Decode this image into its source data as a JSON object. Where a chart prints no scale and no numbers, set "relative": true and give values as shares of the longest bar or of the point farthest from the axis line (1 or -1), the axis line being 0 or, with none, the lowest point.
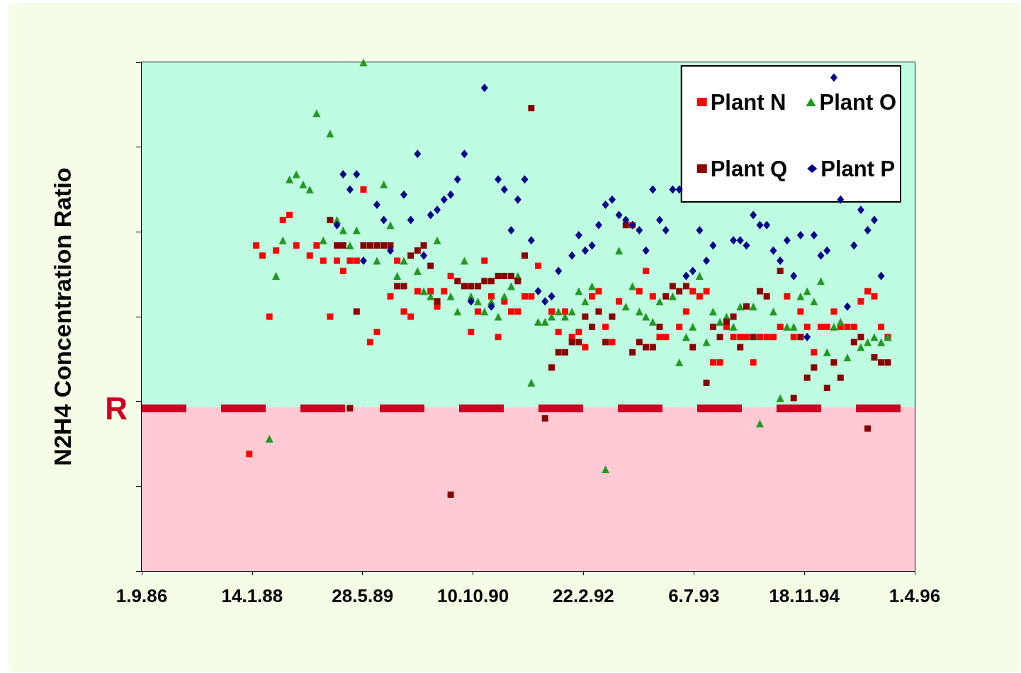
{
  "chart_data": {
    "type": "scatter",
    "ylabel": "N2H4 Concentration Ratio",
    "relative": true,
    "xlim": [
      "1986-09-01",
      "1996-04-01"
    ],
    "xticks": [
      {
        "value": "1986-09-01",
        "label": "1.9.86"
      },
      {
        "value": "1988-01-14",
        "label": "14.1.88"
      },
      {
        "value": "1989-05-28",
        "label": "28.5.89"
      },
      {
        "value": "1990-10-10",
        "label": "10.10.90"
      },
      {
        "value": "1992-02-22",
        "label": "22.2.92"
      },
      {
        "value": "1993-07-06",
        "label": "6.7.93"
      },
      {
        "value": "1994-11-18",
        "label": "18.11.94"
      },
      {
        "value": "1996-04-01",
        "label": "1.4.96"
      }
    ],
    "grid": true,
    "legend": "top right",
    "tick_labels": "x",
    "ref_lines": [
      {
        "axis": "y",
        "value": 0.322,
        "label": "R",
        "color": "#cc0022",
        "line_style": "dashed"
      }
    ],
    "bands": [
      {
        "axis": "y",
        "from": 0,
        "to": 0.322,
        "color": "#ffcad4"
      },
      {
        "axis": "y",
        "from": 0.322,
        "to": 1,
        "color": "#bffde2"
      }
    ],
    "series": [
      {
        "name": "Plant N",
        "color": "#ff0000",
        "marker": "square",
        "x": [
          "1989-06",
          "1988-07",
          "1988-06",
          "1988-02",
          "1988-03",
          "1988-05",
          "1988-08",
          "1988-11",
          "1988-10",
          "1988-12",
          "1989-02",
          "1989-03",
          "1989-04",
          "1989-05",
          "1989-11",
          "1989-10",
          "1988-04",
          "1989-01",
          "1989-08",
          "1989-07",
          "1988-01",
          "1990-12",
          "1991-08",
          "1990-07",
          "1990-02",
          "1990-04",
          "1990-06",
          "1990-05",
          "1991-01",
          "1991-03",
          "1991-06",
          "1991-07",
          "1992-12",
          "1992-05",
          "1992-04",
          "1992-08",
          "1992-11",
          "1993-01",
          "1992-10",
          "1989-12",
          "1990-01",
          "1990-11",
          "1991-04",
          "1991-05",
          "1991-10",
          "1991-12",
          "1990-10",
          "1991-02",
          "1991-11",
          "1992-02",
          "1992-01",
          "1992-03",
          "1992-06",
          "1992-07",
          "1993-06",
          "1993-07",
          "1993-08",
          "1993-09",
          "1993-05",
          "1993-12",
          "1994-08",
          "1994-12",
          "1995-02",
          "1995-03",
          "1995-05",
          "1995-06",
          "1995-07",
          "1995-11",
          "1993-02",
          "1993-03",
          "1994-01",
          "1994-02",
          "1994-03",
          "1994-05",
          "1994-06",
          "1994-07",
          "1994-10",
          "1995-12",
          "1995-01",
          "1993-10",
          "1993-11",
          "1994-04",
          "1994-09",
          "1994-11",
          "1995-04",
          "1995-09",
          "1995-08",
          "1995-10"
        ],
        "values": [
          0.75,
          0.7,
          0.69,
          0.64,
          0.62,
          0.63,
          0.64,
          0.64,
          0.62,
          0.61,
          0.61,
          0.59,
          0.61,
          0.61,
          0.61,
          0.54,
          0.5,
          0.5,
          0.47,
          0.45,
          0.23,
          0.61,
          0.6,
          0.58,
          0.55,
          0.55,
          0.55,
          0.52,
          0.54,
          0.53,
          0.54,
          0.54,
          0.59,
          0.55,
          0.54,
          0.53,
          0.55,
          0.54,
          0.68,
          0.51,
          0.5,
          0.51,
          0.51,
          0.51,
          0.51,
          0.51,
          0.47,
          0.46,
          0.47,
          0.47,
          0.46,
          0.44,
          0.48,
          0.45,
          0.51,
          0.55,
          0.54,
          0.55,
          0.48,
          0.48,
          0.48,
          0.48,
          0.48,
          0.48,
          0.48,
          0.48,
          0.48,
          0.48,
          0.46,
          0.46,
          0.46,
          0.46,
          0.46,
          0.46,
          0.46,
          0.46,
          0.46,
          0.46,
          0.43,
          0.41,
          0.41,
          0.41,
          0.54,
          0.51,
          0.51,
          0.55,
          0.53,
          0.54
        ]
      },
      {
        "name": "Plant O",
        "color": "#229922",
        "marker": "triangle",
        "x": [
          "1989-06",
          "1988-11",
          "1989-01",
          "1988-08",
          "1988-07",
          "1988-09",
          "1988-10",
          "1989-09",
          "1989-02",
          "1989-03",
          "1989-05",
          "1989-10",
          "1988-06",
          "1988-12",
          "1989-04",
          "1989-08",
          "1989-11",
          "1988-05",
          "1988-04",
          "1990-05",
          "1989-12",
          "1990-01",
          "1990-09",
          "1990-02",
          "1990-03",
          "1990-04",
          "1990-07",
          "1990-08",
          "1990-10",
          "1990-11",
          "1990-12",
          "1991-01",
          "1991-02",
          "1991-03",
          "1991-04",
          "1991-05",
          "1991-07",
          "1991-08",
          "1991-09",
          "1991-10",
          "1991-11",
          "1991-12",
          "1992-01",
          "1992-02",
          "1992-03",
          "1992-04",
          "1992-06",
          "1992-08",
          "1992-09",
          "1992-10",
          "1992-11",
          "1992-12",
          "1993-01",
          "1993-02",
          "1993-04",
          "1993-05",
          "1993-06",
          "1993-07",
          "1993-08",
          "1993-09",
          "1993-10",
          "1993-11",
          "1993-12",
          "1994-01",
          "1994-02",
          "1994-04",
          "1994-05",
          "1994-06",
          "1994-07",
          "1994-08",
          "1994-09",
          "1994-10",
          "1994-11",
          "1994-12",
          "1995-01",
          "1995-02",
          "1995-03",
          "1995-04",
          "1995-05",
          "1995-06",
          "1995-07",
          "1995-08",
          "1995-09",
          "1995-10",
          "1995-11",
          "1995-12"
        ],
        "values": [
          1,
          0.9,
          0.86,
          0.78,
          0.77,
          0.76,
          0.75,
          0.76,
          0.69,
          0.67,
          0.67,
          0.68,
          0.65,
          0.65,
          0.64,
          0.61,
          0.58,
          0.58,
          0.26,
          0.65,
          0.61,
          null,
          0.61,
          0.59,
          0.55,
          0.54,
          0.54,
          0.51,
          0.54,
          0.53,
          0.51,
          0.53,
          0.5,
          0.54,
          0.56,
          0.58,
          0.37,
          0.49,
          0.49,
          0.5,
          0.51,
          0.5,
          0.51,
          0.55,
          0.53,
          0.56,
          0.2,
          0.63,
          0.52,
          0.56,
          0.51,
          0.5,
          0.49,
          0.53,
          0.54,
          0.41,
          0.46,
          0.48,
          0.58,
          0.45,
          0.51,
          0.49,
          0.5,
          0.48,
          0.52,
          0.52,
          0.29,
          null,
          0.51,
          0.34,
          0.48,
          0.48,
          0.54,
          0.55,
          0.53,
          0.57,
          0.43,
          0.48,
          0.49,
          0.42,
          null,
          0.44,
          0.45,
          0.46,
          0.45,
          0.46
        ]
      },
      {
        "name": "Plant Q",
        "color": "#880000",
        "marker": "square",
        "x": [
          "1989-01",
          "1989-02",
          "1989-03",
          "1989-06",
          "1989-07",
          "1989-08",
          "1989-09",
          "1989-10",
          "1989-11",
          "1989-05",
          "1989-04",
          "1991-07",
          "1990-02",
          "1990-03",
          "1990-01",
          "1990-04",
          "1989-12",
          "1990-08",
          "1990-09",
          "1990-10",
          "1990-11",
          "1990-12",
          "1991-01",
          "1991-02",
          "1991-03",
          "1991-04",
          "1991-05",
          "1991-06",
          "1990-05",
          "1992-09",
          "1990-07",
          "1991-09",
          "1992-03",
          "1992-05",
          "1992-07",
          "1992-01",
          "1992-02",
          "1991-11",
          "1991-12",
          "1991-10",
          "1992-04",
          "1992-06",
          "1992-11",
          "1992-12",
          "1993-01",
          "1992-10",
          "1993-02",
          "1993-07",
          "1993-09",
          "1993-10",
          "1993-12",
          "1994-01",
          "1993-11",
          "1994-02",
          "1994-04",
          "1994-11",
          "1994-10",
          "1994-12",
          "1995-01",
          "1995-03",
          "1995-04",
          "1995-05",
          "1995-07",
          "1995-08",
          "1995-10",
          "1995-11",
          "1995-12",
          "1995-09",
          "1994-08",
          "1994-05",
          "1994-06",
          "1994-03",
          "1993-04",
          "1993-03",
          "1993-05",
          "1993-06"
        ],
        "values": [
          0.69,
          0.64,
          0.64,
          0.64,
          0.64,
          0.64,
          0.64,
          0.64,
          0.56,
          0.51,
          0.32,
          0.91,
          0.63,
          0.64,
          0.62,
          0.6,
          0.56,
          0.57,
          0.56,
          0.56,
          0.56,
          0.57,
          0.57,
          0.58,
          0.58,
          0.58,
          0.57,
          0.62,
          0.53,
          0.68,
          0.15,
          0.3,
          0.5,
          0.51,
          0.5,
          0.45,
          0.45,
          0.43,
          0.43,
          0.4,
          0.48,
          0.45,
          0.45,
          0.44,
          0.44,
          0.43,
          0.48,
          0.44,
          0.37,
          0.48,
          0.49,
          0.5,
          0.46,
          0.44,
          0.46,
          0.46,
          0.34,
          0.38,
          0.4,
          0.36,
          0.41,
          0.38,
          0.45,
          0.46,
          0.42,
          0.41,
          0.41,
          0.28,
          0.59,
          0.55,
          0.54,
          0.52,
          0.56,
          0.54,
          0.55,
          0.56
        ]
      },
      {
        "name": "Plant P",
        "color": "#000088",
        "marker": "diamond",
        "x": [
          "1989-03",
          "1989-05",
          "1989-04",
          "1989-08",
          "1989-09",
          "1989-02",
          "1989-10",
          "1989-06",
          "1990-02",
          "1990-09",
          "1989-12",
          "1990-01",
          "1990-03",
          "1990-04",
          "1990-05",
          "1990-06",
          "1990-07",
          "1990-08",
          "1990-10",
          "1990-12",
          "1991-01",
          "1991-02",
          "1991-03",
          "1991-04",
          "1991-05",
          "1991-06",
          "1991-07",
          "1991-08",
          "1991-09",
          "1991-10",
          "1991-11",
          "1992-01",
          "1992-02",
          "1992-03",
          "1992-04",
          "1992-05",
          "1992-06",
          "1992-07",
          "1992-08",
          "1992-09",
          "1992-10",
          "1992-11",
          "1992-12",
          "1993-01",
          "1993-02",
          "1993-03",
          "1993-04",
          "1993-05",
          "1993-06",
          "1993-07",
          "1993-08",
          "1993-09",
          "1993-10",
          "1994-01",
          "1994-02",
          "1994-03",
          "1994-04",
          "1994-05",
          "1994-06",
          "1994-07",
          "1994-08",
          "1994-09",
          "1994-10",
          "1994-11",
          "1994-12",
          "1995-01",
          "1995-02",
          "1995-03",
          "1995-04",
          "1995-05",
          "1995-06",
          "1995-07",
          "1995-08",
          "1995-09",
          "1995-10",
          "1995-11"
        ],
        "values": [
          0.78,
          0.78,
          0.75,
          0.72,
          0.69,
          0.68,
          0.63,
          0.61,
          0.82,
          0.82,
          0.74,
          0.69,
          0.62,
          0.7,
          0.71,
          0.73,
          0.74,
          0.77,
          0.53,
          0.95,
          0.52,
          0.77,
          0.75,
          0.67,
          0.73,
          0.77,
          0.65,
          0.55,
          0.53,
          0.54,
          0.59,
          0.62,
          0.66,
          0.63,
          0.64,
          0.68,
          0.72,
          0.73,
          0.7,
          0.69,
          0.68,
          0.67,
          0.63,
          0.75,
          0.69,
          0.67,
          0.75,
          0.75,
          0.58,
          0.59,
          0.67,
          0.61,
          0.64,
          0.65,
          0.65,
          0.64,
          0.7,
          0.68,
          0.68,
          0.63,
          0.61,
          0.65,
          0.58,
          0.66,
          0.46,
          0.66,
          0.62,
          0.63,
          0.97,
          0.73,
          0.52,
          0.64,
          0.71,
          0.67,
          0.69,
          0.58
        ]
      }
    ]
  }
}
